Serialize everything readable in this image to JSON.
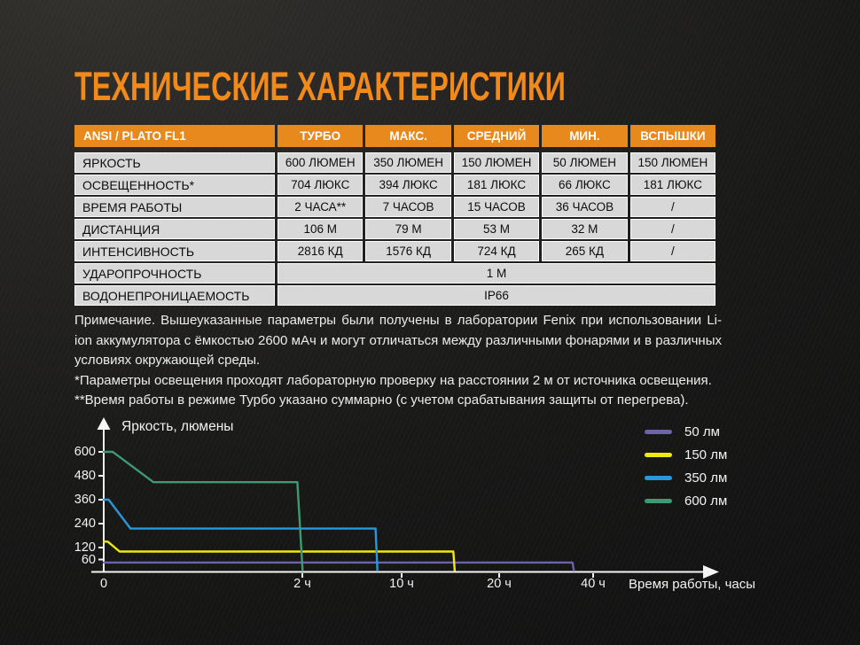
{
  "title": "ТЕХНИЧЕСКИЕ ХАРАКТЕРИСТИКИ",
  "colors": {
    "accent_orange": "#f18a1a",
    "table_header_orange": "#e8891e",
    "cell_gray": "#d8d8d8",
    "axis_white": "#f5f5f5"
  },
  "table": {
    "header": {
      "first": "ANSI / PLATO FL1",
      "cols": [
        "ТУРБО",
        "МАКС.",
        "СРЕДНИЙ",
        "МИН.",
        "ВСПЫШКИ"
      ]
    },
    "rows": [
      {
        "label": "ЯРКОСТЬ",
        "values": [
          "600 ЛЮМЕН",
          "350 ЛЮМЕН",
          "150 ЛЮМЕН",
          "50 ЛЮМЕН",
          "150 ЛЮМЕН"
        ]
      },
      {
        "label": "ОСВЕЩЕННОСТЬ*",
        "values": [
          "704 ЛЮКС",
          "394 ЛЮКС",
          "181 ЛЮКС",
          "66 ЛЮКС",
          "181 ЛЮКС"
        ]
      },
      {
        "label": "ВРЕМЯ РАБОТЫ",
        "values": [
          "2 ЧАСА**",
          "7 ЧАСОВ",
          "15 ЧАСОВ",
          "36 ЧАСОВ",
          "/"
        ]
      },
      {
        "label": "ДИСТАНЦИЯ",
        "values": [
          "106 М",
          "79 М",
          "53 М",
          "32 М",
          "/"
        ]
      },
      {
        "label": "ИНТЕНСИВНОСТЬ",
        "values": [
          "2816 КД",
          "1576 КД",
          "724 КД",
          "265 КД",
          "/"
        ]
      }
    ],
    "span_rows": [
      {
        "label": "УДАРОПРОЧНОСТЬ",
        "value": "1 М"
      },
      {
        "label": "ВОДОНЕПРОНИЦАЕМОСТЬ",
        "value": "IP66"
      }
    ]
  },
  "notes": {
    "paragraph": "Примечание. Вышеуказанные параметры были получены в лаборатории Fenix при использовании Li-ion аккумулятора с ёмкостью 2600 мАч и могут отличаться между различными фонарями и в различных условиях окружающей среды.",
    "footnote1": "*Параметры освещения проходят лабораторную проверку на расстоянии 2 м от источника освещения.",
    "footnote2": "**Время работы в режиме Турбо указано суммарно (с учетом срабатывания защиты от перегрева)."
  },
  "chart_data": {
    "type": "line",
    "title": "",
    "ylabel": "Яркость, люмены",
    "xlabel": "Время работы, часы",
    "ylim": [
      0,
      600
    ],
    "grid": false,
    "legend_position": "top-right",
    "y_ticks": [
      600,
      480,
      360,
      240,
      120,
      60
    ],
    "x_ticks": [
      {
        "label": "0",
        "hours": 0
      },
      {
        "label": "2 ч",
        "hours": 2
      },
      {
        "label": "10 ч",
        "hours": 10
      },
      {
        "label": "20 ч",
        "hours": 20
      },
      {
        "label": "40 ч",
        "hours": 40
      }
    ],
    "series": [
      {
        "name": "50 лм",
        "color": "#6c64a8",
        "points": [
          [
            0,
            45
          ],
          [
            35.6,
            45
          ],
          [
            35.9,
            4
          ]
        ]
      },
      {
        "name": "150 лм",
        "color": "#f0e812",
        "points": [
          [
            0,
            150
          ],
          [
            0.04,
            150
          ],
          [
            0.16,
            100
          ],
          [
            15.3,
            100
          ],
          [
            15.45,
            4
          ]
        ]
      },
      {
        "name": "350 лм",
        "color": "#2b96d8",
        "points": [
          [
            0,
            360
          ],
          [
            0.05,
            360
          ],
          [
            0.27,
            215
          ],
          [
            7.9,
            215
          ],
          [
            8.05,
            4
          ]
        ]
      },
      {
        "name": "600 лм",
        "color": "#3e9a73",
        "points": [
          [
            0,
            600
          ],
          [
            0.09,
            600
          ],
          [
            0.5,
            448
          ],
          [
            1.95,
            448
          ],
          [
            2.02,
            4
          ]
        ]
      }
    ]
  }
}
